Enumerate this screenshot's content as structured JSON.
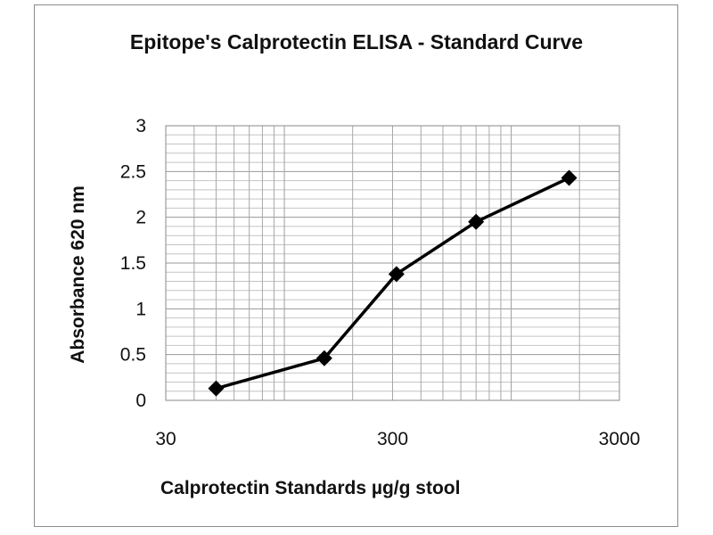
{
  "chart_data": {
    "type": "line",
    "title": "Epitope's Calprotectin ELISA - Standard Curve",
    "xlabel": "Calprotectin Standards µg/g stool",
    "ylabel": "Absorbance 620 nm",
    "x_scale": "log",
    "xlim": [
      30,
      3000
    ],
    "ylim": [
      0,
      3
    ],
    "x_ticks": [
      "30",
      "300",
      "3000"
    ],
    "y_ticks": [
      "0",
      "0.5",
      "1",
      "1.5",
      "2",
      "2.5",
      "3"
    ],
    "grid": true,
    "legend": "none",
    "series": [
      {
        "marker": "diamond",
        "color": "#000000",
        "x": [
          50,
          150,
          312,
          700,
          1800
        ],
        "y": [
          0.13,
          0.46,
          1.38,
          1.95,
          2.43
        ]
      }
    ]
  }
}
